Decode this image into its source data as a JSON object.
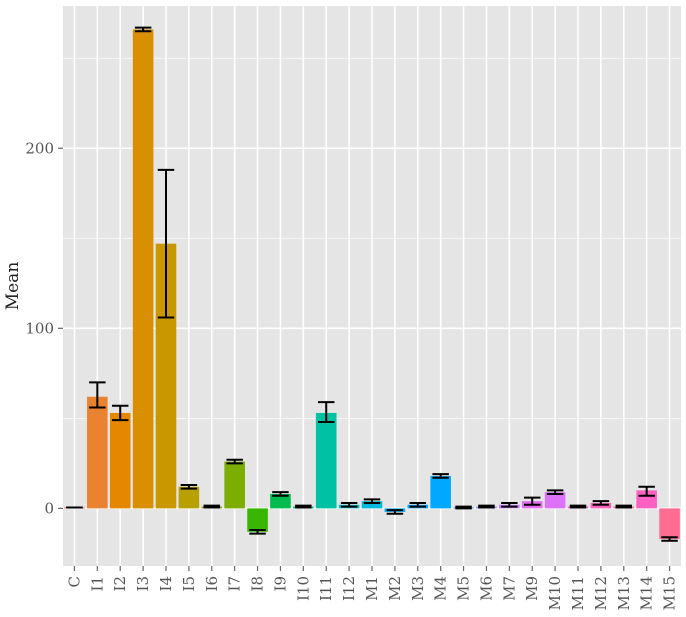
{
  "chart_data": {
    "type": "bar",
    "title": "",
    "xlabel": "",
    "ylabel": "Mean",
    "ylim": [
      -32,
      279
    ],
    "yticks": [
      0,
      100,
      200
    ],
    "grid": true,
    "legend": "none",
    "background_color": "#E5E5E5",
    "grid_color": "#FFFFFF",
    "error_bar_color": "#000000",
    "categories": [
      "C",
      "I1",
      "I2",
      "I3",
      "I4",
      "I5",
      "I6",
      "I7",
      "I8",
      "I9",
      "I10",
      "I11",
      "I12",
      "M1",
      "M2",
      "M3",
      "M4",
      "M5",
      "M6",
      "M7",
      "M9",
      "M10",
      "M11",
      "M12",
      "M13",
      "M14",
      "M15"
    ],
    "values": [
      0.5,
      62,
      53,
      266,
      147,
      12,
      1,
      26,
      -13,
      8,
      1,
      53,
      2,
      4,
      -2,
      2,
      18,
      0.5,
      1,
      2,
      4,
      9,
      1,
      3,
      1,
      10,
      -17
    ],
    "error_low": [
      0.5,
      56,
      49,
      265,
      106,
      11,
      0.5,
      25,
      -14,
      7,
      0.5,
      48,
      1,
      3,
      -3,
      1,
      17,
      0,
      0.5,
      1,
      2,
      8,
      0.5,
      2,
      0.5,
      7,
      -18
    ],
    "error_high": [
      0.5,
      70,
      57,
      267,
      188,
      13,
      1.5,
      27,
      -12,
      9,
      1.5,
      59,
      3,
      5,
      -1,
      3,
      19,
      1,
      1.5,
      3,
      6,
      10,
      1.5,
      4,
      1.5,
      12,
      -16
    ],
    "colors": [
      "#F8766D",
      "#EA8331",
      "#E58700",
      "#D89000",
      "#C99800",
      "#B8A000",
      "#A3A500",
      "#7CAE00",
      "#39B600",
      "#00BB4E",
      "#00BF7D",
      "#00C1A3",
      "#00BFC4",
      "#00BAE0",
      "#00B0F6",
      "#00A5FF",
      "#00A9FF",
      "#35A2FF",
      "#9590FF",
      "#C77CFF",
      "#E76BF3",
      "#DC71FA",
      "#FA62DB",
      "#FF62BC",
      "#FF6A98",
      "#FF61C3",
      "#FF6C91"
    ]
  }
}
